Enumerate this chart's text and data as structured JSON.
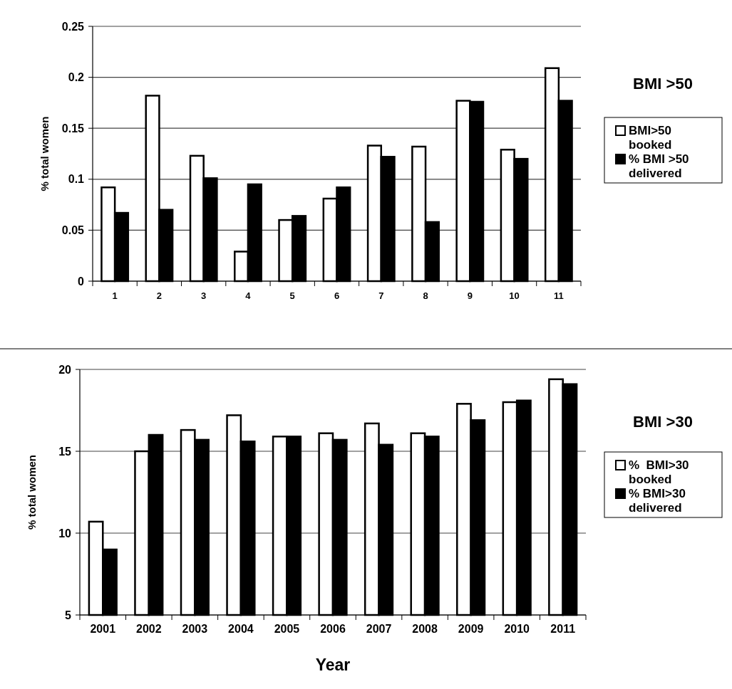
{
  "chart_data": [
    {
      "type": "bar",
      "annotations": [
        "BMI >50"
      ],
      "ylabel": "% total women",
      "categories": [
        "1",
        "2",
        "3",
        "4",
        "5",
        "6",
        "7",
        "8",
        "9",
        "10",
        "11"
      ],
      "series": [
        {
          "name": "BMI>50 booked",
          "color": "#ffffff",
          "values": [
            0.092,
            0.182,
            0.123,
            0.029,
            0.06,
            0.081,
            0.133,
            0.132,
            0.177,
            0.129,
            0.209
          ]
        },
        {
          "name": "% BMI >50 delivered",
          "color": "#000000",
          "values": [
            0.067,
            0.07,
            0.101,
            0.095,
            0.064,
            0.092,
            0.122,
            0.058,
            0.176,
            0.12,
            0.177
          ]
        }
      ],
      "ylim": [
        0,
        0.25
      ],
      "yticks": [
        0,
        0.05,
        0.1,
        0.15,
        0.2,
        0.25
      ],
      "grid": "y",
      "legend": "right"
    },
    {
      "type": "bar",
      "annotations": [
        "BMI >30"
      ],
      "ylabel": "% total women",
      "xlabel": "Year",
      "categories": [
        "2001",
        "2002",
        "2003",
        "2004",
        "2005",
        "2006",
        "2007",
        "2008",
        "2009",
        "2010",
        "2011"
      ],
      "series": [
        {
          "name": "%  BMI>30 booked",
          "color": "#ffffff",
          "values": [
            10.7,
            15.0,
            16.3,
            17.2,
            15.9,
            16.1,
            16.7,
            16.1,
            17.9,
            18.0,
            19.4
          ]
        },
        {
          "name": "% BMI>30 delivered",
          "color": "#000000",
          "values": [
            9.0,
            16.0,
            15.7,
            15.6,
            15.9,
            15.7,
            15.4,
            15.9,
            16.9,
            18.1,
            19.1
          ]
        }
      ],
      "ylim": [
        5,
        20
      ],
      "yticks": [
        5,
        10,
        15,
        20
      ],
      "grid": "y",
      "legend": "right"
    }
  ]
}
